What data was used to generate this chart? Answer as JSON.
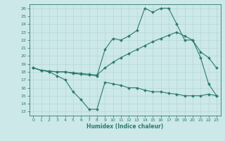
{
  "xlabel": "Humidex (Indice chaleur)",
  "background_color": "#cce8e8",
  "line_color": "#2d7a6e",
  "grid_color": "#b0d4d4",
  "xlim": [
    -0.5,
    23.5
  ],
  "ylim": [
    12.5,
    26.5
  ],
  "yticks": [
    13,
    14,
    15,
    16,
    17,
    18,
    19,
    20,
    21,
    22,
    23,
    24,
    25,
    26
  ],
  "xticks": [
    0,
    1,
    2,
    3,
    4,
    5,
    6,
    7,
    8,
    9,
    10,
    11,
    12,
    13,
    14,
    15,
    16,
    17,
    18,
    19,
    20,
    21,
    22,
    23
  ],
  "line1_x": [
    0,
    1,
    2,
    3,
    4,
    5,
    6,
    7,
    8,
    9,
    10,
    11,
    12,
    13,
    14,
    15,
    16,
    17,
    18,
    19,
    20,
    21,
    22,
    23
  ],
  "line1_y": [
    18.5,
    18.2,
    18.0,
    17.5,
    17.0,
    15.5,
    14.5,
    13.3,
    13.3,
    16.7,
    16.5,
    16.3,
    16.0,
    16.0,
    15.7,
    15.5,
    15.5,
    15.3,
    15.2,
    15.0,
    15.0,
    15.0,
    15.2,
    15.0
  ],
  "line2_x": [
    0,
    1,
    2,
    3,
    4,
    5,
    6,
    7,
    8,
    9,
    10,
    11,
    12,
    13,
    14,
    15,
    16,
    17,
    18,
    19,
    20,
    21,
    22,
    23
  ],
  "line2_y": [
    18.5,
    18.2,
    18.1,
    18.0,
    18.0,
    17.9,
    17.8,
    17.7,
    17.6,
    18.5,
    19.2,
    19.8,
    20.3,
    20.8,
    21.3,
    21.8,
    22.2,
    22.6,
    23.0,
    22.5,
    22.0,
    20.5,
    19.8,
    18.5
  ],
  "line3_x": [
    0,
    1,
    2,
    3,
    4,
    5,
    6,
    7,
    8,
    9,
    10,
    11,
    12,
    13,
    14,
    15,
    16,
    17,
    18,
    19,
    20,
    21,
    22,
    23
  ],
  "line3_y": [
    18.5,
    18.2,
    18.1,
    18.0,
    18.0,
    17.8,
    17.7,
    17.6,
    17.5,
    20.8,
    22.2,
    22.0,
    22.5,
    23.2,
    26.0,
    25.5,
    26.0,
    26.0,
    24.0,
    22.0,
    22.0,
    19.8,
    16.5,
    15.0
  ],
  "marker_size": 2.0,
  "line_width": 0.8,
  "tick_fontsize": 4.5,
  "xlabel_fontsize": 5.5
}
